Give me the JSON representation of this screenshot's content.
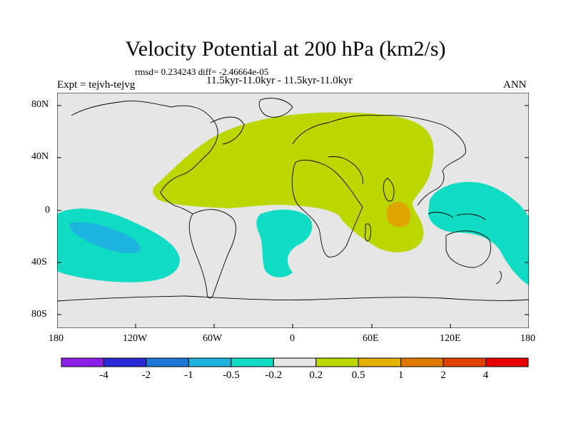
{
  "title": "Velocity Potential at 200 hPa (km2/s)",
  "stats": "rmsd= 0.234243 diff= -2.46664e-05",
  "subtitle": "11.5kyr-11.0kyr - 11.5kyr-11.0kyr",
  "experiment": "Expt = tejvh-tejvg",
  "season": "ANN",
  "map": {
    "projection": "cylindrical equidistant",
    "lon_range": [
      -180,
      180
    ],
    "lat_range": [
      -90,
      90
    ],
    "y_ticks": [
      "80N",
      "40N",
      "0",
      "40S",
      "80S"
    ],
    "x_ticks": [
      "180",
      "120W",
      "60W",
      "0",
      "60E",
      "120E",
      "180"
    ],
    "features": [
      {
        "name": "positive anomaly, Africa/Eurasia/Atlantic",
        "level": "0.2 to 0.5"
      },
      {
        "name": "positive maximum, Indian Ocean",
        "level": "0.5 to 1"
      },
      {
        "name": "negative anomaly, South Pacific",
        "level": "-0.5 to -0.2"
      },
      {
        "name": "negative minimum, South Pacific",
        "level": "-1 to -0.5"
      },
      {
        "name": "negative anomaly, South Atlantic",
        "level": "-0.5 to -0.2"
      },
      {
        "name": "negative anomaly, Maritime Continent / West Pacific",
        "level": "-0.5 to -0.2"
      }
    ]
  },
  "colorbar": {
    "colors": [
      "#8a1ee6",
      "#2a2ad8",
      "#1e78d8",
      "#1eb4e0",
      "#10dcc4",
      "#e6e6e6",
      "#bcd600",
      "#e6b000",
      "#e07800",
      "#e04000",
      "#e60000"
    ],
    "labels": [
      "-4",
      "-2",
      "-1",
      "-0.5",
      "-0.2",
      "0.2",
      "0.5",
      "1",
      "2",
      "4"
    ]
  }
}
